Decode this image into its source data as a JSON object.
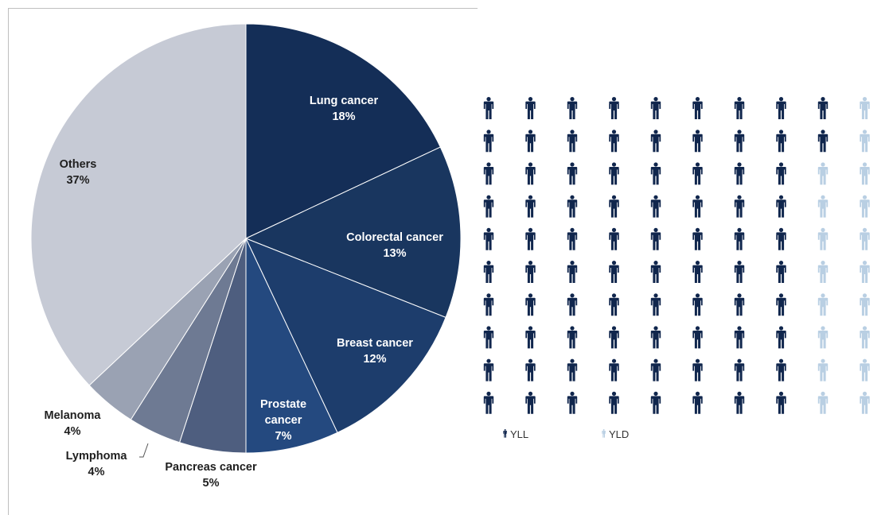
{
  "chart_data": [
    {
      "type": "pie",
      "title": "",
      "slices": [
        {
          "name": "Lung cancer",
          "value": 18,
          "label": "18%",
          "color": "#142e57"
        },
        {
          "name": "Colorectal cancer",
          "value": 13,
          "label": "13%",
          "color": "#19365f"
        },
        {
          "name": "Breast cancer",
          "value": 12,
          "label": "12%",
          "color": "#1d3d6c"
        },
        {
          "name": "Prostate cancer",
          "value": 7,
          "label": "7%",
          "color": "#24497f"
        },
        {
          "name": "Pancreas cancer",
          "value": 5,
          "label": "5%",
          "color": "#4e5e7f"
        },
        {
          "name": "Lymphoma",
          "value": 4,
          "label": "4%",
          "color": "#6e7a93"
        },
        {
          "name": "Melanoma",
          "value": 4,
          "label": "4%",
          "color": "#9aa2b3"
        },
        {
          "name": "Others",
          "value": 37,
          "label": "37%",
          "color": "#c6cad5"
        }
      ]
    },
    {
      "type": "pictogram",
      "title": "",
      "total_icons": 100,
      "series": [
        {
          "name": "YLL",
          "icons": 82.5,
          "color": "#10264d"
        },
        {
          "name": "YLD",
          "icons": 17.5,
          "color": "#b9cfe3"
        }
      ],
      "legend": {
        "position": "bottom-left"
      }
    }
  ]
}
